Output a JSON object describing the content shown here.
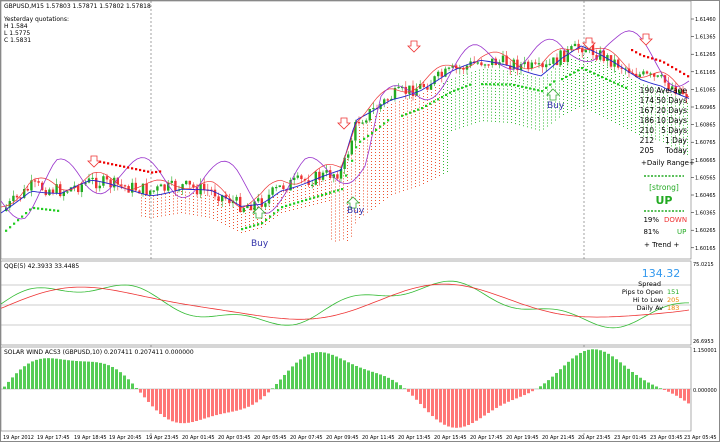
{
  "main": {
    "title": "GBPUSD,M15 1.57803 1.57871 1.57802 1.57818",
    "yesterday_label": "Yesterday quotations:",
    "yesterday_h": "H 1.584",
    "yesterday_l": "L 1.5775",
    "yesterday_c": "C 1.5831",
    "price_ticks": [
      "1.61460",
      "1.61365",
      "1.61265",
      "1.61165",
      "1.61065",
      "1.60965",
      "1.60865",
      "1.60765",
      "1.60665",
      "1.60565",
      "1.60465",
      "1.60365",
      "1.60265",
      "1.60165"
    ],
    "buy_labels": [
      "Buy",
      "Buy",
      "Buy"
    ],
    "range_table": {
      "rows": [
        {
          "value": "190",
          "label": "Average"
        },
        {
          "value": "174",
          "label": "50 Days"
        },
        {
          "value": "167",
          "label": "20 Days"
        },
        {
          "value": "186",
          "label": "10 Days"
        },
        {
          "value": "210",
          "label": "5 Days"
        },
        {
          "value": "212",
          "label": "1 Day"
        },
        {
          "value": "205",
          "label": "Today"
        }
      ],
      "footer": "+Daily Range+"
    },
    "trend_panel": {
      "strength": "[strong]",
      "direction": "UP",
      "down_pct": "19%",
      "down_label": "DOWN",
      "up_pct": "81%",
      "up_label": "UP",
      "footer": "+ Trend +"
    },
    "colors": {
      "bull": "#22aa22",
      "bear": "#ee3333",
      "psar_up": "#22cc22",
      "psar_down": "#ee0000",
      "ma_blue": "#2222cc",
      "purple": "#9933cc",
      "cloud": "#ee5533"
    }
  },
  "qqe": {
    "title": "QQE(5) 42.3933 33.4485",
    "ticks": [
      "75.0215",
      "26.6953"
    ],
    "big_value": "134.32",
    "spread_label": "Spread",
    "pips_label": "Pips to Open",
    "pips_value": "151",
    "hilo_label": "Hi to Low",
    "hilo_value": "205",
    "daily_label": "Daily Av",
    "daily_value": "183"
  },
  "solar": {
    "title": "SOLAR WIND ACS3 (GBPUSD,10) 0.207411 0.207411 0.000000",
    "ticks": [
      "1.150001",
      "0.000000"
    ]
  },
  "time_axis": [
    "19 Apr 2012",
    "19 Apr 17:45",
    "19 Apr 18:45",
    "19 Apr 20:45",
    "19 Apr 23:45",
    "20 Apr 01:45",
    "20 Apr 03:45",
    "20 Apr 05:45",
    "20 Apr 07:45",
    "20 Apr 09:45",
    "20 Apr 11:45",
    "20 Apr 13:45",
    "20 Apr 15:45",
    "20 Apr 17:45",
    "20 Apr 19:45",
    "20 Apr 21:45",
    "20 Apr 23:45",
    "23 Apr 01:45",
    "23 Apr 03:45",
    "23 Apr 05:45"
  ]
}
